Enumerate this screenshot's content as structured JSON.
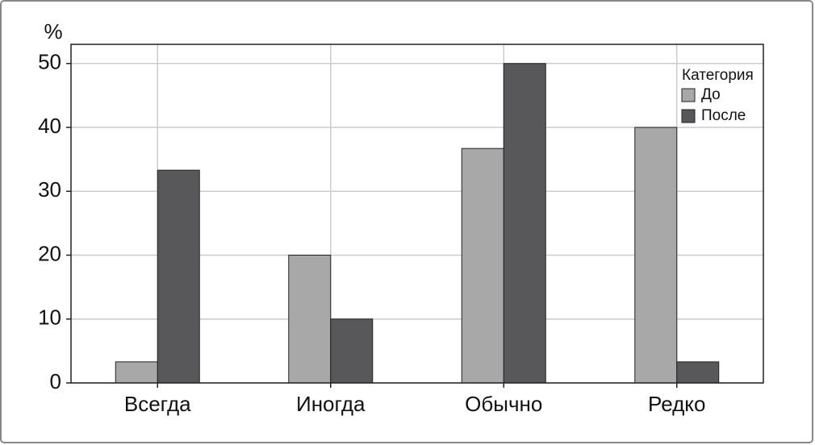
{
  "chart_data": {
    "type": "bar",
    "y_label": "%",
    "categories": [
      "Всегда",
      "Иногда",
      "Обычно",
      "Редко"
    ],
    "series": [
      {
        "name": "До",
        "color": "#a8a8a8",
        "values": [
          3.3,
          20,
          36.7,
          40
        ]
      },
      {
        "name": "После",
        "color": "#58585a",
        "values": [
          33.3,
          10,
          50,
          3.3
        ]
      }
    ],
    "legend_title": "Категория",
    "legend_position": "upper right",
    "ylim": [
      0,
      53
    ],
    "yticks": [
      0,
      10,
      20,
      30,
      40,
      50
    ],
    "grid": true
  }
}
